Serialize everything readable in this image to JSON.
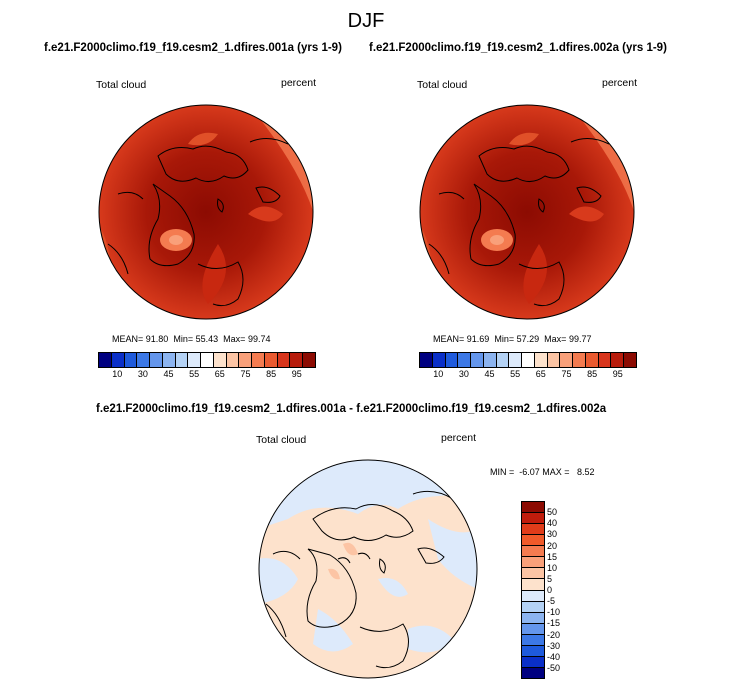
{
  "main_title": "DJF",
  "panels": [
    {
      "title": "f.e21.F2000climo.f19_f19.cesm2_1.dfires.001a (yrs 1-9)",
      "variable": "Total cloud",
      "units": "percent",
      "stats": {
        "mean_label": "MEAN=",
        "mean": "91.80",
        "min_label": "Min=",
        "min": "55.43",
        "max_label": "Max=",
        "max": "99.74"
      }
    },
    {
      "title": "f.e21.F2000climo.f19_f19.cesm2_1.dfires.002a (yrs 1-9)",
      "variable": "Total cloud",
      "units": "percent",
      "stats": {
        "mean_label": "MEAN=",
        "mean": "91.69",
        "min_label": "Min=",
        "min": "57.29",
        "max_label": "Max=",
        "max": "99.77"
      }
    }
  ],
  "colorbar": {
    "ticks": [
      "10",
      "30",
      "45",
      "55",
      "65",
      "75",
      "85",
      "95"
    ],
    "colors": [
      "#000080",
      "#0a2fc8",
      "#1e5adc",
      "#3c78e6",
      "#6496ec",
      "#8cb4f0",
      "#b4d2f5",
      "#ddeafb",
      "#ffffff",
      "#fde2cc",
      "#fcc4a4",
      "#f9a07a",
      "#f47b50",
      "#ea5a30",
      "#d8351c",
      "#b81c0c",
      "#8c0b02"
    ]
  },
  "difference": {
    "title": "f.e21.F2000climo.f19_f19.cesm2_1.dfires.001a - f.e21.F2000climo.f19_f19.cesm2_1.dfires.002a",
    "variable": "Total cloud",
    "units": "percent",
    "minmax": "MIN =  -6.07 MAX =   8.52",
    "levels": [
      "50",
      "40",
      "30",
      "20",
      "15",
      "10",
      "5",
      "0",
      "-5",
      "-10",
      "-15",
      "-20",
      "-30",
      "-40",
      "-50"
    ],
    "colors": [
      "#8c0b02",
      "#c01c0c",
      "#e03c1a",
      "#f05a2a",
      "#f47b50",
      "#f9a07a",
      "#fcc4a4",
      "#fde2cc",
      "#ddeafb",
      "#b4d2f5",
      "#8cb4f0",
      "#6496ec",
      "#3c78e6",
      "#1e5adc",
      "#0a2fc8",
      "#000080"
    ]
  }
}
